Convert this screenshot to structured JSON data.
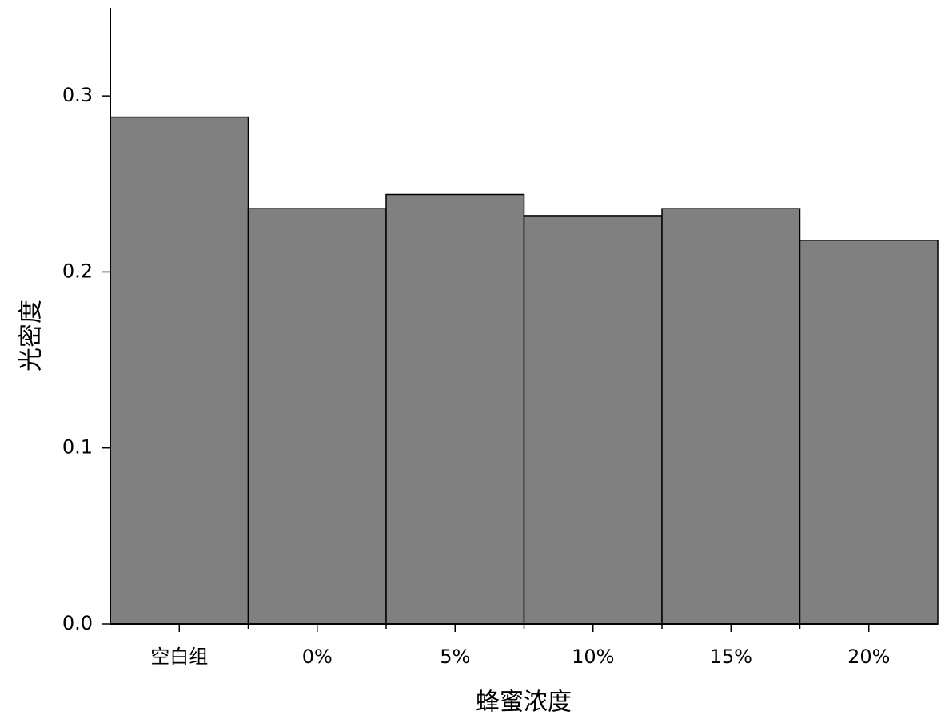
{
  "chart_data": {
    "type": "bar",
    "x_label": "蜂蜜浓度",
    "y_label": "光密度",
    "categories": [
      "空白组",
      "0%",
      "5%",
      "10%",
      "15%",
      "20%"
    ],
    "values": [
      0.288,
      0.236,
      0.244,
      0.232,
      0.236,
      0.218
    ],
    "color": "#808080",
    "ylim": [
      0,
      0.35
    ],
    "yticks": [
      {
        "value": 0,
        "label": "0.0"
      },
      0.1,
      0.2,
      0.3
    ],
    "grid": false
  }
}
